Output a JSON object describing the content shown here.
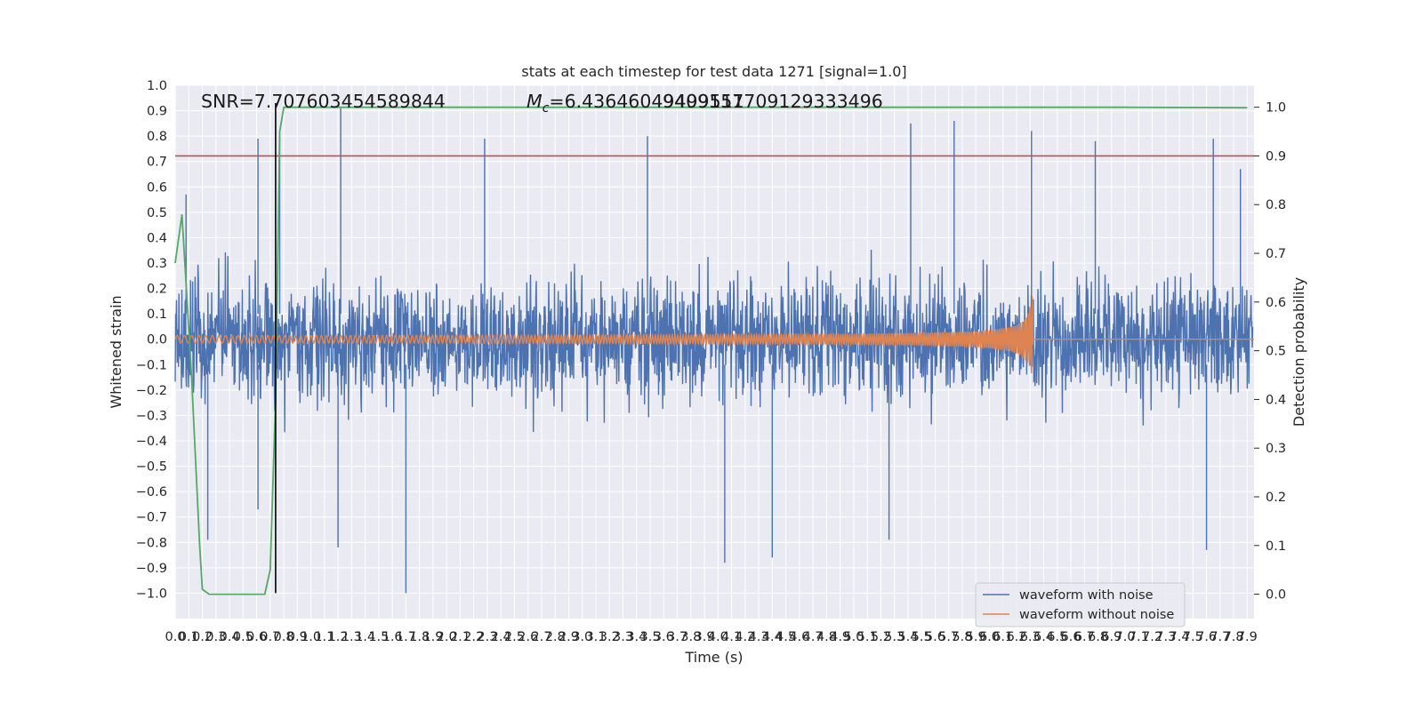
{
  "chart_data": {
    "type": "line",
    "title": "stats at each timestep for test data 1271 [signal=1.0]",
    "xlabel": "Time (s)",
    "ylabel": "Whitened strain",
    "y2label": "Detection probability",
    "xlim": [
      0.0,
      7.95
    ],
    "ylim": [
      -1.1,
      1.0
    ],
    "y2lim": [
      -0.05,
      1.045
    ],
    "x_ticks": [
      "0.0",
      "0.1",
      "0.2",
      "0.3",
      "0.4",
      "0.5",
      "0.6",
      "0.7",
      "0.8",
      "0.9",
      "1.0",
      "1.1",
      "1.2",
      "1.3",
      "1.4",
      "1.5",
      "1.6",
      "1.7",
      "1.8",
      "1.9",
      "2.0",
      "2.1",
      "2.2",
      "2.3",
      "2.4",
      "2.5",
      "2.6",
      "2.7",
      "2.8",
      "2.9",
      "3.0",
      "3.1",
      "3.2",
      "3.3",
      "3.4",
      "3.5",
      "3.6",
      "3.7",
      "3.8",
      "3.9",
      "4.0",
      "4.1",
      "4.2",
      "4.3",
      "4.4",
      "4.5",
      "4.6",
      "4.7",
      "4.8",
      "4.9",
      "5.0",
      "5.1",
      "5.2",
      "5.3",
      "5.4",
      "5.5",
      "5.6",
      "5.7",
      "5.8",
      "5.9",
      "6.0",
      "6.1",
      "6.2",
      "6.3",
      "6.4",
      "6.5",
      "6.6",
      "6.7",
      "6.8",
      "6.9",
      "7.0",
      "7.1",
      "7.2",
      "7.3",
      "7.4",
      "7.5",
      "7.6",
      "7.7",
      "7.8",
      "7.9"
    ],
    "y_ticks": [
      "1.0",
      "0.9",
      "0.8",
      "0.7",
      "0.6",
      "0.5",
      "0.4",
      "0.3",
      "0.2",
      "0.1",
      "0.0",
      "−0.1",
      "−0.2",
      "−0.3",
      "−0.4",
      "−0.5",
      "−0.6",
      "−0.7",
      "−0.8",
      "−0.9",
      "−1.0"
    ],
    "y2_ticks": [
      "1.0",
      "0.9",
      "0.8",
      "0.7",
      "0.6",
      "0.5",
      "0.4",
      "0.3",
      "0.2",
      "0.1",
      "0.0"
    ],
    "annotations": {
      "snr": "SNR=7.707603454589844",
      "mc_prefix": "M",
      "mc_sub": "c",
      "mc_value": "=6.43646049499511",
      "mc_overlap": "94091577091293334​96"
    },
    "legend": {
      "placement": "lower-right",
      "entries": [
        "waveform with noise",
        "waveform without noise"
      ]
    },
    "series": [
      {
        "name": "waveform with noise",
        "color": "#4c72b0",
        "description": "noisy whitened strain, approx. ±0.3 band with peaks to 0.91 and -1.0",
        "peaks": [
          [
            0.08,
            0.57
          ],
          [
            0.61,
            0.79
          ],
          [
            0.77,
            0.8
          ],
          [
            1.22,
            0.91
          ],
          [
            2.28,
            0.79
          ],
          [
            3.48,
            0.8
          ],
          [
            5.42,
            0.85
          ],
          [
            5.74,
            0.86
          ],
          [
            6.31,
            0.82
          ],
          [
            6.78,
            0.78
          ],
          [
            7.65,
            0.79
          ],
          [
            7.85,
            0.67
          ]
        ],
        "troughs": [
          [
            0.24,
            -0.79
          ],
          [
            0.61,
            -0.67
          ],
          [
            1.2,
            -0.82
          ],
          [
            1.7,
            -1.0
          ],
          [
            4.05,
            -0.88
          ],
          [
            4.4,
            -0.86
          ],
          [
            5.26,
            -0.79
          ],
          [
            7.6,
            -0.83
          ]
        ]
      },
      {
        "name": "waveform without noise",
        "color": "#dd8452",
        "description": "chirp with growing amplitude ending at merger",
        "amp_start": 0.012,
        "amp_peak": 0.19,
        "merger_time": 6.32
      },
      {
        "name": "detection probability",
        "color": "#55a868",
        "axis": "right",
        "x": [
          0.0,
          0.05,
          0.12,
          0.18,
          0.2,
          0.25,
          0.3,
          0.4,
          0.5,
          0.6,
          0.66,
          0.7,
          0.74,
          0.77,
          0.8,
          1.0,
          2.0,
          3.0,
          4.0,
          5.0,
          6.0,
          7.0,
          7.9
        ],
        "values": [
          0.68,
          0.78,
          0.45,
          0.1,
          0.01,
          0.0,
          0.0,
          0.0,
          0.0,
          0.0,
          0.0,
          0.05,
          0.4,
          0.95,
          1.0,
          1.0,
          1.0,
          1.0,
          1.0,
          1.0,
          1.0,
          1.0,
          0.999
        ]
      }
    ],
    "threshold": {
      "color": "#c44e52",
      "value": 0.9,
      "axis": "right"
    },
    "marker_line": {
      "color": "#000000",
      "x": 0.74
    }
  }
}
